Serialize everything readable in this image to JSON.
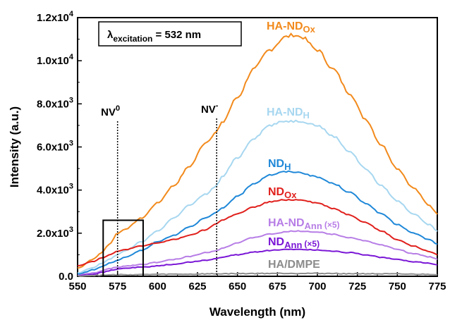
{
  "chart_data": {
    "type": "line",
    "xlabel": "Wavelength (nm)",
    "ylabel": "Intensity (a.u.)",
    "xlim": [
      550,
      775
    ],
    "ylim": [
      0,
      12000
    ],
    "x_ticks": [
      550,
      575,
      600,
      625,
      650,
      675,
      700,
      725,
      750,
      775
    ],
    "y_ticks": [
      {
        "value": 0,
        "mantissa": "0.0",
        "exp": ""
      },
      {
        "value": 2000,
        "mantissa": "2.0x10",
        "exp": "3"
      },
      {
        "value": 4000,
        "mantissa": "4.0x10",
        "exp": "3"
      },
      {
        "value": 6000,
        "mantissa": "6.0x10",
        "exp": "3"
      },
      {
        "value": 8000,
        "mantissa": "8.0x10",
        "exp": "3"
      },
      {
        "value": 10000,
        "mantissa": "1.0x10",
        "exp": "4"
      },
      {
        "value": 12000,
        "mantissa": "1.2x10",
        "exp": "4"
      }
    ],
    "x": [
      550,
      560,
      565,
      570,
      575,
      580,
      590,
      600,
      610,
      620,
      630,
      637,
      640,
      650,
      660,
      670,
      680,
      685,
      690,
      700,
      710,
      720,
      730,
      740,
      750,
      760,
      770,
      775
    ],
    "series": [
      {
        "color": "#f28a1c",
        "label_main": "HA-ND",
        "label_sub": "Ox",
        "label_suffix": "",
        "values": [
          380,
          800,
          1100,
          1500,
          2000,
          2200,
          2700,
          3400,
          4200,
          5100,
          6200,
          6700,
          7100,
          8300,
          9600,
          10500,
          11100,
          11200,
          11100,
          10500,
          9600,
          8500,
          7300,
          6100,
          5000,
          4100,
          3300,
          2900
        ]
      },
      {
        "color": "#a7d7f0",
        "label_main": "HA-ND",
        "label_sub": "H",
        "label_suffix": "",
        "values": [
          150,
          400,
          600,
          800,
          1000,
          1200,
          1600,
          2100,
          2700,
          3300,
          3800,
          4200,
          4600,
          5500,
          6400,
          7000,
          7200,
          7200,
          7200,
          7000,
          6500,
          5800,
          5000,
          4200,
          3500,
          2900,
          2400,
          2100
        ]
      },
      {
        "color": "#1f88d8",
        "label_main": "ND",
        "label_sub": "H",
        "label_suffix": "",
        "values": [
          100,
          300,
          450,
          600,
          750,
          900,
          1200,
          1600,
          1900,
          2300,
          2700,
          2950,
          3150,
          3700,
          4300,
          4700,
          4850,
          4850,
          4800,
          4600,
          4300,
          3900,
          3400,
          2900,
          2400,
          2000,
          1700,
          1500
        ]
      },
      {
        "color": "#e0201c",
        "label_main": "ND",
        "label_sub": "Ox",
        "label_suffix": "",
        "values": [
          500,
          700,
          850,
          1000,
          1150,
          1250,
          1400,
          1550,
          1700,
          1900,
          2150,
          2450,
          2600,
          2900,
          3200,
          3450,
          3550,
          3550,
          3550,
          3400,
          3150,
          2850,
          2500,
          2100,
          1700,
          1400,
          1150,
          1000
        ]
      },
      {
        "color": "#b77ee6",
        "label_main": "HA-ND",
        "label_sub": "Ann",
        "label_suffix": "(×5)",
        "values": [
          50,
          150,
          250,
          350,
          420,
          480,
          550,
          650,
          780,
          920,
          1100,
          1200,
          1300,
          1550,
          1800,
          1950,
          2050,
          2100,
          2100,
          2050,
          1950,
          1800,
          1650,
          1450,
          1250,
          1050,
          900,
          800
        ]
      },
      {
        "color": "#7a16d6",
        "label_main": "ND",
        "label_sub": "Ann",
        "label_suffix": "(×5)",
        "values": [
          30,
          100,
          180,
          260,
          330,
          380,
          420,
          480,
          560,
          650,
          750,
          820,
          880,
          1000,
          1120,
          1200,
          1250,
          1250,
          1250,
          1220,
          1170,
          1100,
          1000,
          880,
          780,
          680,
          600,
          540
        ]
      },
      {
        "color": "#8c8c8c",
        "label_main": "HA/DMPE",
        "label_sub": "",
        "label_suffix": "",
        "values": [
          20,
          40,
          50,
          60,
          70,
          75,
          80,
          90,
          95,
          100,
          110,
          115,
          118,
          125,
          130,
          135,
          138,
          138,
          138,
          135,
          130,
          125,
          120,
          112,
          105,
          98,
          92,
          88
        ]
      }
    ],
    "annotations": [
      {
        "label": "NV",
        "sup": "0",
        "x": 575
      },
      {
        "label": "NV",
        "sup": "-",
        "x": 637
      }
    ],
    "legend_box": {
      "symbol": "λ",
      "sub": "excitation",
      "text": " = 532 nm"
    },
    "zoom_box": {
      "x": [
        566,
        591
      ],
      "y": [
        0,
        2600
      ]
    }
  }
}
